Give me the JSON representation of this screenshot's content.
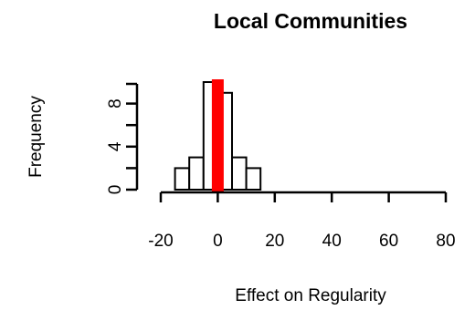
{
  "chart_data": {
    "type": "bar",
    "title": "Local Communities",
    "xlabel": "Effect on Regularity",
    "ylabel": "Frequency",
    "xlim": [
      -20,
      80
    ],
    "ylim": [
      0,
      10
    ],
    "x_ticks": [
      -20,
      0,
      20,
      40,
      60,
      80
    ],
    "y_ticks": [
      0,
      4,
      8
    ],
    "bins": [
      {
        "x0": -15,
        "x1": -10,
        "count": 2
      },
      {
        "x0": -10,
        "x1": -5,
        "count": 3
      },
      {
        "x0": -5,
        "x1": 0,
        "count": 10
      },
      {
        "x0": 0,
        "x1": 5,
        "count": 9
      },
      {
        "x0": 5,
        "x1": 10,
        "count": 3
      },
      {
        "x0": 10,
        "x1": 15,
        "count": 2
      }
    ],
    "reference_line": {
      "x": 0,
      "color": "#ff0000"
    },
    "grid": false,
    "colors": {
      "bar_fill": "#ffffff",
      "bar_stroke": "#000000",
      "reference": "#ff0000"
    }
  }
}
